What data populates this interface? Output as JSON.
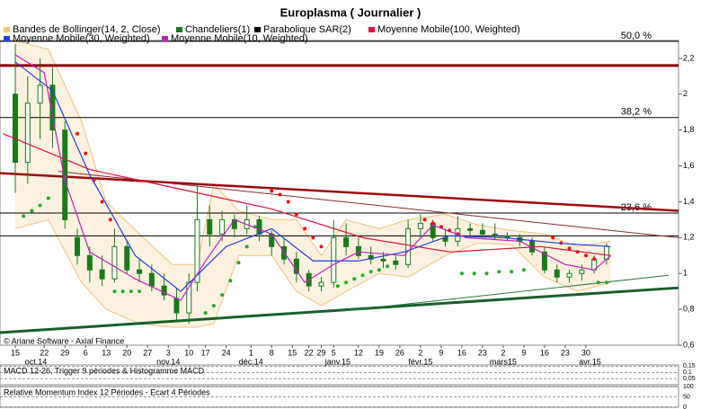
{
  "chart_data": {
    "type": "candlestick",
    "title": "Europlasma  ( Journalier )",
    "copyright": "© Ariane Software - Axial Finance",
    "xlim": [
      -3.7,
      160.4
    ],
    "ylim": [
      0.6,
      2.3
    ],
    "yticks": [
      {
        "value": 0.6,
        "label": "0,6"
      },
      {
        "value": 0.8,
        "label": "0,8"
      },
      1,
      {
        "value": 1.2,
        "label": "1,2"
      },
      {
        "value": 1.4,
        "label": "1,4"
      },
      {
        "value": 1.6,
        "label": "1,6"
      },
      {
        "value": 1.8,
        "label": "1,8"
      },
      2,
      {
        "value": 2.2,
        "label": "2,2"
      }
    ],
    "xticks": [
      {
        "value": 0,
        "label": "15"
      },
      {
        "value": 7,
        "label": "22"
      },
      {
        "value": 12,
        "label": "29"
      },
      {
        "value": 17,
        "label": "6"
      },
      {
        "value": 22,
        "label": "13"
      },
      {
        "value": 27,
        "label": "20"
      },
      {
        "value": 32,
        "label": "27"
      },
      {
        "value": 37,
        "label": "3"
      },
      {
        "value": 42,
        "label": "10"
      },
      {
        "value": 46,
        "label": "17"
      },
      {
        "value": 51,
        "label": "24"
      },
      {
        "value": 57,
        "label": "1"
      },
      {
        "value": 62,
        "label": "8"
      },
      {
        "value": 67,
        "label": "15"
      },
      {
        "value": 71,
        "label": "22"
      },
      {
        "value": 74,
        "label": "29"
      },
      {
        "value": 77,
        "label": "5"
      },
      {
        "value": 83,
        "label": "12"
      },
      {
        "value": 88,
        "label": "19"
      },
      {
        "value": 93,
        "label": "26"
      },
      {
        "value": 98,
        "label": "2"
      },
      {
        "value": 103,
        "label": "9"
      },
      {
        "value": 108,
        "label": "16"
      },
      {
        "value": 113,
        "label": "23"
      },
      {
        "value": 118,
        "label": "2"
      },
      {
        "value": 123,
        "label": "9"
      },
      {
        "value": 128,
        "label": "16"
      },
      {
        "value": 133,
        "label": "23"
      },
      {
        "value": 138,
        "label": "30"
      }
    ],
    "month_labels": [
      {
        "value": 5,
        "label": "oct.14"
      },
      {
        "value": 37,
        "label": "nov.14"
      },
      {
        "value": 57,
        "label": "déc.14"
      },
      {
        "value": 78,
        "label": "janv.15"
      },
      {
        "value": 98,
        "label": "févr.15"
      },
      {
        "value": 118,
        "label": "mars15"
      },
      {
        "value": 139,
        "label": "avr.15"
      }
    ],
    "levels": [
      {
        "value": 2.295,
        "label": "50,0 %",
        "color": "#000000",
        "width": 1
      },
      {
        "value": 2.16,
        "color": "#8b0000",
        "width": 3
      },
      {
        "value": 1.87,
        "label": "38,2 %",
        "color": "#000000",
        "width": 1
      },
      {
        "value": 1.337,
        "label": "23,6 %",
        "color": "#000000",
        "width": 1
      },
      {
        "value": 1.21,
        "color": "#000000",
        "width": 1
      }
    ],
    "trendlines": [
      {
        "x": [
          -3.7,
          160.4
        ],
        "values": [
          1.56,
          1.35
        ],
        "color": "#9b0a0a",
        "width": 2.5
      },
      {
        "x": [
          10.4,
          160.4
        ],
        "values": [
          1.57,
          1.2
        ],
        "color": "#8b2a2a",
        "width": 1
      },
      {
        "x": [
          -3.7,
          160.4
        ],
        "values": [
          0.67,
          0.92
        ],
        "color": "#16602a",
        "width": 3
      },
      {
        "x": [
          79,
          158
        ],
        "values": [
          0.79,
          0.99
        ],
        "color": "#2a7a3a",
        "width": 1
      }
    ],
    "series": [
      {
        "name": "Bandes de Bollinger(14, 2, Close)",
        "kind": "band",
        "color": "#f3c27a",
        "fill": "#fcf2df",
        "x": [
          0,
          8,
          16,
          22,
          30,
          38,
          44,
          48,
          54,
          62,
          68,
          74,
          80,
          88,
          95,
          104,
          112,
          120,
          128,
          136,
          144
        ],
        "upper": [
          2.3,
          2.25,
          1.85,
          1.4,
          1.22,
          1.05,
          1.05,
          1.5,
          1.35,
          1.3,
          1.3,
          1.1,
          1.3,
          1.25,
          1.3,
          1.33,
          1.27,
          1.24,
          1.22,
          1.15,
          1.18
        ],
        "lower": [
          1.25,
          1.3,
          0.95,
          0.8,
          0.72,
          0.7,
          0.7,
          0.72,
          1.1,
          1.1,
          0.9,
          0.82,
          0.9,
          1.0,
          0.98,
          1.1,
          1.17,
          1.16,
          0.98,
          0.9,
          0.95
        ]
      },
      {
        "name": "Chandeliers(1)",
        "kind": "candle",
        "color": "#1a7a1a",
        "x": [
          0,
          3,
          6,
          9,
          12,
          15,
          18,
          21,
          24,
          27,
          30,
          33,
          36,
          39,
          42,
          44,
          47,
          50,
          53,
          56,
          59,
          62,
          65,
          68,
          71,
          74,
          77,
          80,
          83,
          86,
          89,
          92,
          95,
          98,
          101,
          104,
          107,
          110,
          113,
          116,
          119,
          122,
          125,
          128,
          131,
          134,
          137,
          140,
          143
        ],
        "open": [
          2.0,
          1.62,
          1.95,
          2.05,
          1.8,
          1.2,
          1.1,
          1.02,
          0.97,
          1.15,
          1.02,
          1.0,
          0.93,
          0.86,
          0.78,
          0.95,
          1.3,
          1.22,
          1.3,
          1.25,
          1.3,
          1.22,
          1.15,
          1.08,
          1.0,
          0.93,
          0.95,
          1.2,
          1.15,
          1.1,
          1.08,
          1.07,
          1.05,
          1.25,
          1.28,
          1.2,
          1.18,
          1.25,
          1.24,
          1.22,
          1.21,
          1.2,
          1.18,
          1.12,
          1.02,
          0.98,
          1.0,
          1.02,
          1.08
        ],
        "high": [
          2.28,
          2.1,
          2.2,
          2.15,
          1.85,
          1.25,
          1.15,
          1.1,
          1.25,
          1.18,
          1.08,
          1.05,
          1.0,
          0.92,
          1.0,
          1.5,
          1.38,
          1.35,
          1.33,
          1.38,
          1.32,
          1.24,
          1.2,
          1.12,
          1.02,
          0.98,
          1.3,
          1.28,
          1.2,
          1.15,
          1.12,
          1.1,
          1.3,
          1.33,
          1.3,
          1.25,
          1.32,
          1.28,
          1.28,
          1.28,
          1.23,
          1.22,
          1.2,
          1.15,
          1.05,
          1.02,
          1.05,
          1.1,
          1.17
        ],
        "low": [
          1.45,
          1.5,
          1.75,
          1.7,
          1.25,
          1.05,
          0.95,
          0.93,
          0.95,
          1.0,
          0.95,
          0.9,
          0.85,
          0.74,
          0.72,
          0.9,
          1.15,
          1.18,
          1.2,
          1.22,
          1.18,
          1.1,
          1.05,
          0.95,
          0.9,
          0.9,
          0.92,
          1.1,
          1.08,
          1.05,
          1.03,
          1.02,
          1.03,
          1.2,
          1.18,
          1.15,
          1.15,
          1.2,
          1.2,
          1.19,
          1.18,
          1.15,
          1.1,
          1.0,
          0.95,
          0.95,
          0.96,
          1.0,
          1.05
        ],
        "close": [
          1.62,
          1.95,
          2.05,
          1.8,
          1.3,
          1.1,
          1.02,
          0.97,
          1.15,
          1.02,
          1.0,
          0.93,
          0.88,
          0.78,
          0.95,
          1.3,
          1.22,
          1.3,
          1.25,
          1.3,
          1.22,
          1.15,
          1.08,
          1.0,
          0.93,
          0.95,
          1.2,
          1.15,
          1.1,
          1.08,
          1.07,
          1.05,
          1.25,
          1.28,
          1.2,
          1.18,
          1.25,
          1.24,
          1.22,
          1.21,
          1.2,
          1.18,
          1.12,
          1.02,
          0.98,
          1.0,
          1.02,
          1.08,
          1.15
        ]
      },
      {
        "name": "Parabolique SAR(2)",
        "kind": "sar",
        "color": "#000000",
        "groups": [
          {
            "color": "#ee1111",
            "x": [
              15,
              17,
              19,
              21,
              23,
              62,
              64,
              66,
              68,
              70,
              72,
              74,
              99,
              101,
              103,
              105,
              107,
              130,
              132,
              134,
              136,
              138,
              140
            ],
            "values": [
              1.78,
              1.67,
              1.52,
              1.4,
              1.3,
              1.46,
              1.44,
              1.4,
              1.33,
              1.25,
              1.2,
              1.15,
              1.3,
              1.28,
              1.26,
              1.24,
              1.22,
              1.2,
              1.17,
              1.14,
              1.12,
              1.1,
              1.08
            ]
          },
          {
            "color": "#22aa22",
            "x": [
              2,
              4,
              6,
              8,
              24,
              26,
              28,
              30,
              46,
              48,
              50,
              52,
              54,
              56,
              58,
              78,
              80,
              82,
              84,
              86,
              88,
              90,
              108,
              111,
              114,
              117,
              120,
              123,
              141,
              143
            ],
            "values": [
              1.32,
              1.35,
              1.38,
              1.42,
              0.9,
              0.9,
              0.9,
              0.9,
              0.78,
              0.82,
              0.88,
              0.96,
              1.06,
              1.15,
              1.26,
              0.93,
              0.95,
              0.97,
              0.99,
              1.01,
              1.02,
              1.04,
              1.0,
              1.0,
              1.0,
              1.01,
              1.01,
              1.02,
              0.95,
              0.95
            ]
          }
        ]
      },
      {
        "name": "Moyenne Mobile(100, Weighted)",
        "kind": "line",
        "color": "#e0103a",
        "x": [
          -3,
          18,
          40,
          62,
          84,
          105,
          127,
          144
        ],
        "values": [
          1.78,
          1.58,
          1.47,
          1.36,
          1.2,
          1.12,
          1.15,
          1.1
        ]
      },
      {
        "name": "Moyenne Mobile(30, Weighted)",
        "kind": "line",
        "color": "#2040e0",
        "x": [
          0,
          9,
          18,
          29,
          40,
          51,
          62,
          72,
          83,
          94,
          105,
          118,
          131,
          144
        ],
        "values": [
          2.18,
          2.02,
          1.55,
          1.1,
          0.9,
          1.15,
          1.25,
          1.07,
          1.07,
          1.12,
          1.21,
          1.2,
          1.17,
          1.15
        ]
      },
      {
        "name": "Moyenne Mobile(10, Weighted)",
        "kind": "line",
        "color": "#c020c0",
        "x": [
          0,
          7,
          12,
          18,
          29,
          40,
          46,
          53,
          62,
          70,
          77,
          83,
          94,
          101,
          109,
          122,
          133,
          140,
          144
        ],
        "values": [
          2.22,
          2.12,
          1.52,
          1.12,
          0.97,
          0.85,
          1.07,
          1.3,
          1.22,
          0.95,
          1.05,
          1.12,
          1.1,
          1.27,
          1.2,
          1.18,
          1.05,
          1.02,
          1.1
        ]
      }
    ],
    "panels": [
      {
        "title": "MACD 12-26, Trigger 9 périodes & Histogramme MACD",
        "ylim": [
          0,
          0.16
        ],
        "yticks": [
          {
            "value": 0.15,
            "label": "0,15"
          },
          {
            "value": 0.1,
            "label": "0,1"
          },
          {
            "value": 0.05,
            "label": "0,05"
          }
        ]
      },
      {
        "title": "Relative Momentum Index 12 Périodes - Ecart 4 Périodes",
        "ylim": [
          0,
          100
        ],
        "yticks": [
          100,
          50,
          0
        ]
      }
    ]
  }
}
